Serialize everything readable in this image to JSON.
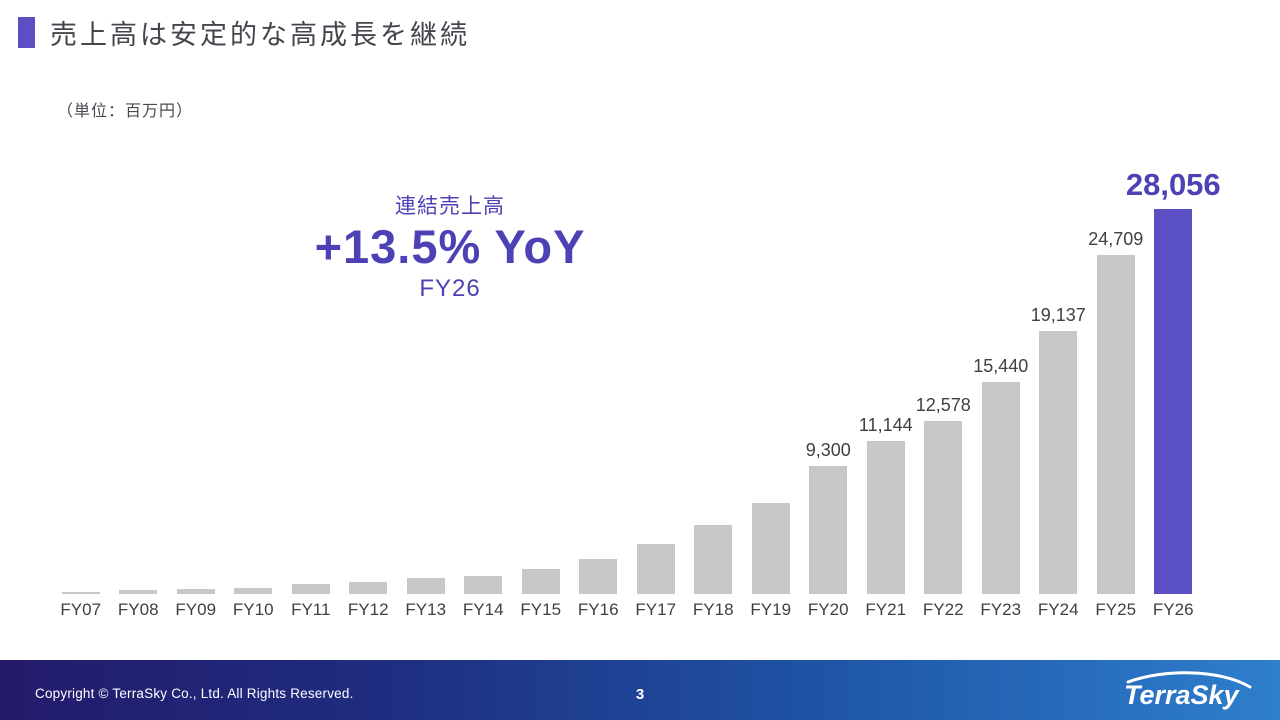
{
  "slide": {
    "title": "売上高は安定的な高成長を継続",
    "unit_note": "（単位：百万円）",
    "annotation": {
      "series_label": "連結売上高",
      "growth": "+13.5% YoY",
      "period": "FY26"
    },
    "footer": {
      "copyright": "Copyright © TerraSky Co., Ltd. All Rights Reserved.",
      "page_number": "3",
      "logo_text": "TerraSky"
    },
    "colors": {
      "accent_purple": "#5a50c3",
      "bar_gray": "#c8c8c8",
      "title_text": "#45454d",
      "footer_gradient_left": "#241a6b",
      "footer_gradient_right": "#2e7fcd"
    }
  },
  "chart_data": {
    "type": "bar",
    "title": "連結売上高",
    "unit": "百万円",
    "categories": [
      "FY07",
      "FY08",
      "FY09",
      "FY10",
      "FY11",
      "FY12",
      "FY13",
      "FY14",
      "FY15",
      "FY16",
      "FY17",
      "FY18",
      "FY19",
      "FY20",
      "FY21",
      "FY22",
      "FY23",
      "FY24",
      "FY25",
      "FY26"
    ],
    "values": [
      150,
      280,
      360,
      440,
      730,
      880,
      1170,
      1300,
      1800,
      2550,
      3650,
      5000,
      6600,
      9300,
      11144,
      12578,
      15440,
      19137,
      24709,
      28056
    ],
    "data_labels": [
      null,
      null,
      null,
      null,
      null,
      null,
      null,
      null,
      null,
      null,
      null,
      null,
      null,
      "9,300",
      "11,144",
      "12,578",
      "15,440",
      "19,137",
      "24,709",
      "28,056"
    ],
    "highlight_index": 19,
    "xlabel": "",
    "ylabel": "",
    "ylim": [
      0,
      28056
    ],
    "grid": false,
    "legend": "none",
    "bar_color": "#c8c8c8",
    "highlight_color": "#5a50c3"
  }
}
